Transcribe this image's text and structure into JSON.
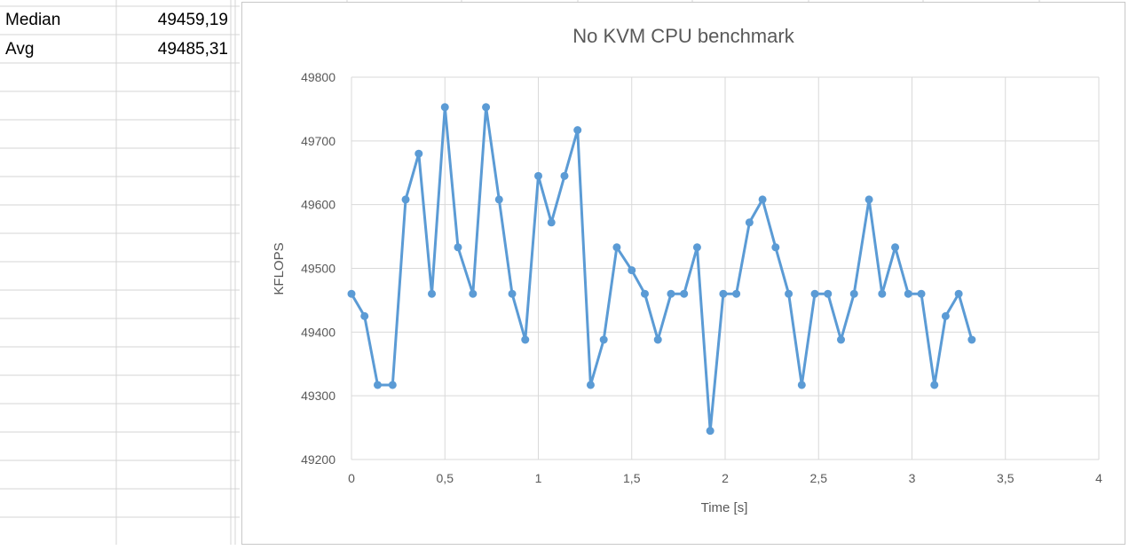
{
  "sheet": {
    "rows": [
      {
        "label": "Median",
        "value": "49459,19"
      },
      {
        "label": "Avg",
        "value": "49485,31"
      }
    ]
  },
  "chart_data": {
    "type": "line",
    "title": "No KVM CPU benchmark",
    "xlabel": "Time [s]",
    "ylabel": "KFLOPS",
    "xlim": [
      0,
      4
    ],
    "ylim": [
      49200,
      49800
    ],
    "xticks": [
      "0",
      "0,5",
      "1",
      "1,5",
      "2",
      "2,5",
      "3",
      "3,5",
      "4"
    ],
    "yticks": [
      "49200",
      "49300",
      "49400",
      "49500",
      "49600",
      "49700",
      "49800"
    ],
    "grid": true,
    "color": "#5b9bd5",
    "series": [
      {
        "x": [
          0,
          0.07,
          0.14,
          0.22,
          0.29,
          0.36,
          0.43,
          0.5,
          0.57,
          0.65,
          0.72,
          0.79,
          0.86,
          0.93,
          1.0,
          1.07,
          1.14,
          1.21,
          1.28,
          1.35,
          1.42,
          1.5,
          1.57,
          1.64,
          1.71,
          1.78,
          1.85,
          1.92,
          1.99,
          2.06,
          2.13,
          2.2,
          2.27,
          2.34,
          2.41,
          2.48,
          2.55,
          2.62,
          2.69,
          2.77,
          2.84,
          2.91,
          2.98,
          3.05,
          3.12,
          3.18,
          3.25,
          3.32
        ],
        "values": [
          49460,
          49425,
          49317,
          49317,
          49608,
          49680,
          49460,
          49753,
          49533,
          49460,
          49753,
          49608,
          49460,
          49388,
          49645,
          49572,
          49645,
          49717,
          49317,
          49388,
          49533,
          49497,
          49460,
          49388,
          49460,
          49460,
          49533,
          49245,
          49460,
          49460,
          49572,
          49608,
          49533,
          49460,
          49317,
          49460,
          49460,
          49388,
          49460,
          49608,
          49460,
          49533,
          49460,
          49460,
          49317,
          49425,
          49460,
          49388
        ]
      }
    ]
  }
}
